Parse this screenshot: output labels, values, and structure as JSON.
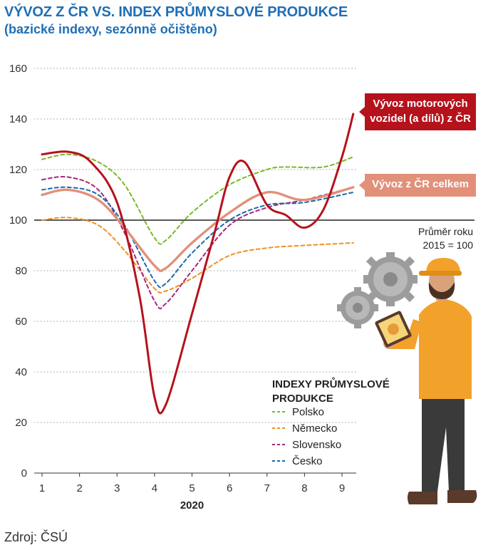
{
  "title": "VÝVOZ Z ČR VS. INDEX PRŮMYSLOVÉ PRODUKCE",
  "subtitle": "(bazické indexy, sezónně očištěno)",
  "source": "Zdroj: ČSÚ",
  "colors": {
    "polsko": "#7ab829",
    "nemecko": "#f0901e",
    "slovensko": "#a5277c",
    "cesko": "#1a6aaa",
    "vozidla": "#b5121b",
    "celkem": "#e2907a"
  },
  "chart_data": {
    "type": "line",
    "xlabel": "2020",
    "ylabel": "",
    "x": [
      1,
      2,
      3,
      4,
      5,
      6,
      7,
      8,
      9
    ],
    "xlim": [
      1,
      9.4
    ],
    "ylim": [
      0,
      160
    ],
    "yticks": [
      0,
      20,
      40,
      60,
      80,
      100,
      120,
      140,
      160
    ],
    "grid": true,
    "reference_line": {
      "y": 100,
      "label_lines": [
        "Průměr roku",
        "2015 = 100"
      ]
    },
    "legend_title_lines": [
      "INDEXY PRŮMYSLOVÉ",
      "PRODUKCE"
    ],
    "series": [
      {
        "key": "polsko",
        "name": "Polsko",
        "style": "dashed",
        "legend": true,
        "x": [
          1,
          1.7,
          2.5,
          3.2,
          4,
          4.3,
          5,
          6,
          7,
          7.5,
          8.5,
          9.3
        ],
        "y": [
          124,
          126,
          123,
          114,
          93,
          92,
          103,
          114,
          120,
          121,
          121,
          125
        ]
      },
      {
        "key": "nemecko",
        "name": "Německo",
        "style": "dashed",
        "legend": true,
        "x": [
          1,
          1.7,
          2.5,
          3.2,
          4,
          4.3,
          5,
          6,
          7,
          8,
          9.3
        ],
        "y": [
          100,
          101,
          98,
          88,
          73,
          72,
          77,
          86,
          89,
          90,
          91
        ]
      },
      {
        "key": "slovensko",
        "name": "Slovensko",
        "style": "dashed",
        "legend": true,
        "x": [
          1,
          1.7,
          2.5,
          3.2,
          4,
          4.3,
          5,
          6,
          7,
          8,
          9.3
        ],
        "y": [
          116,
          117,
          112,
          95,
          68,
          67,
          80,
          98,
          105,
          108,
          113
        ]
      },
      {
        "key": "cesko",
        "name": "Česko",
        "style": "dashed",
        "legend": true,
        "x": [
          1,
          1.7,
          2.5,
          3.2,
          4,
          4.3,
          5,
          6,
          7,
          8,
          9.3
        ],
        "y": [
          112,
          113,
          110,
          98,
          76,
          75,
          87,
          100,
          106,
          107,
          111
        ]
      },
      {
        "key": "vozidla",
        "name": "Vývoz motorových vozidel (a dílů) z ČR",
        "style": "solid",
        "legend": false,
        "label_lines": [
          "Vývoz motorových",
          "vozidel (a dílů) z ČR"
        ],
        "x": [
          1,
          1.7,
          2.3,
          3,
          3.6,
          4,
          4.3,
          5,
          5.6,
          6,
          6.4,
          7,
          7.5,
          8,
          8.5,
          9,
          9.3
        ],
        "y": [
          126,
          127,
          123,
          107,
          70,
          30,
          27,
          63,
          95,
          117,
          123,
          106,
          102,
          97,
          104,
          125,
          142
        ]
      },
      {
        "key": "celkem",
        "name": "Vývoz z ČR celkem",
        "style": "solid",
        "legend": false,
        "label_lines": [
          "Vývoz z ČR celkem"
        ],
        "x": [
          1,
          1.7,
          2.5,
          3.2,
          4,
          4.3,
          5,
          6,
          7,
          8,
          9.3
        ],
        "y": [
          110,
          112,
          108,
          97,
          82,
          81,
          91,
          103,
          111,
          108,
          113
        ]
      }
    ]
  }
}
